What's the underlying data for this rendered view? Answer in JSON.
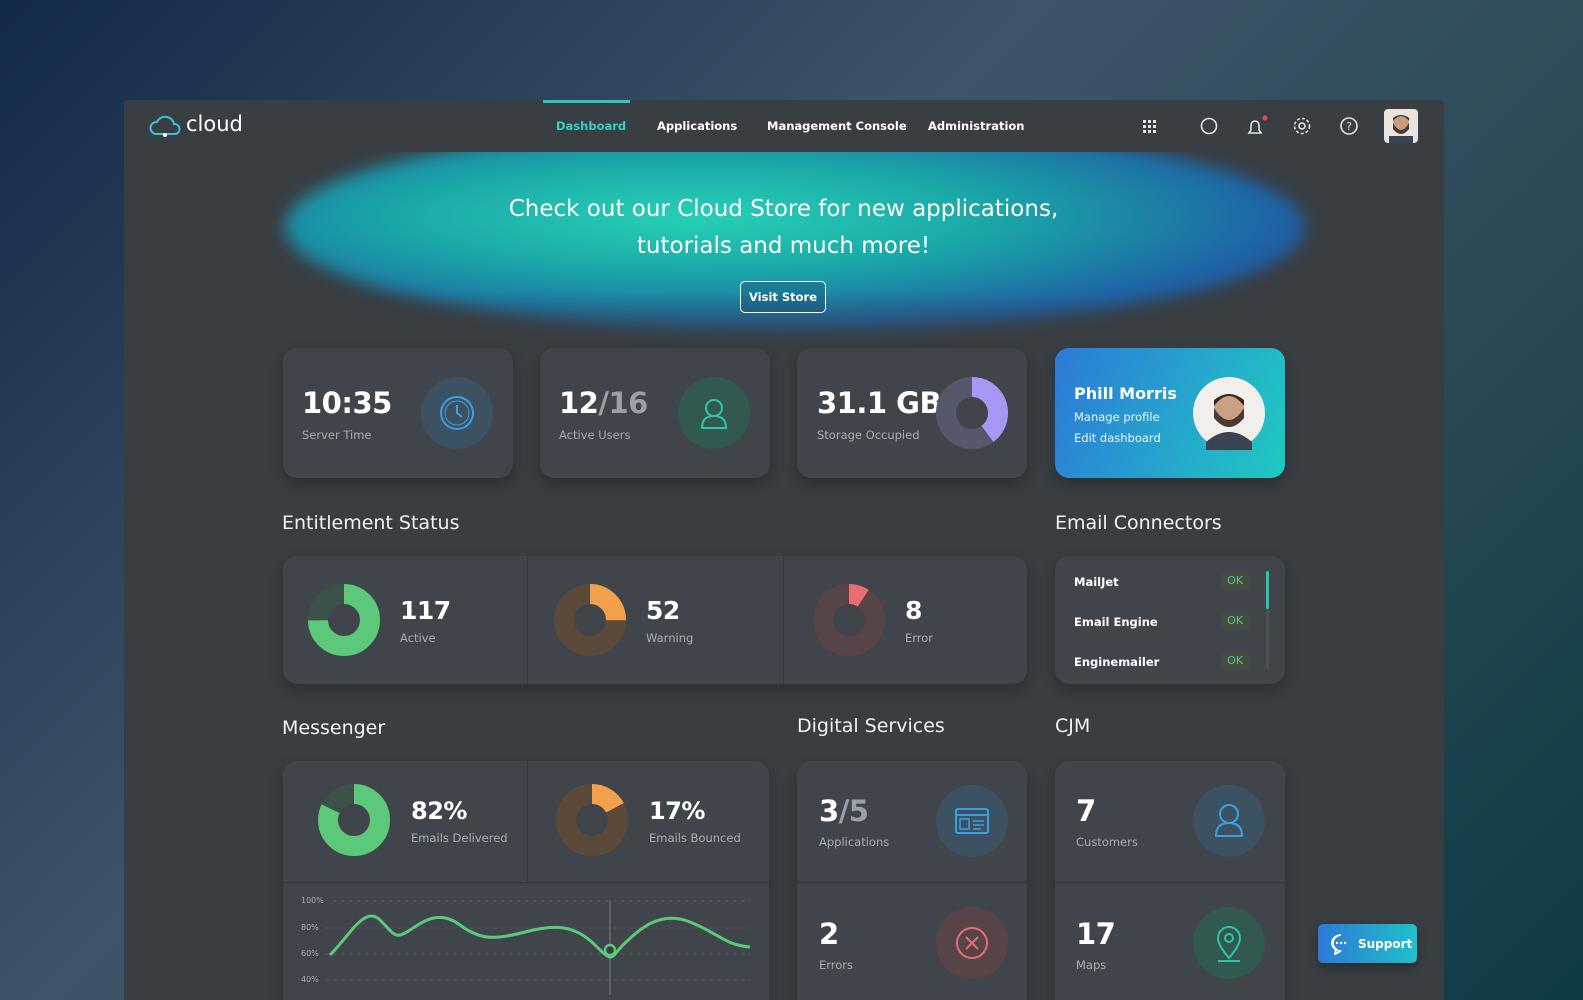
{
  "nav": {
    "logo": "cloud",
    "items": [
      "Dashboard",
      "Applications",
      "Management Console",
      "Administration"
    ]
  },
  "banner": {
    "line1": "Check out our Cloud Store for new applications,",
    "line2": "tutorials and much more!",
    "button": "Visit Store"
  },
  "stats": [
    {
      "value": "10:35",
      "label": "Server Time"
    },
    {
      "value": "12",
      "suffix": "/16",
      "label": "Active Users"
    },
    {
      "value": "31.1 GB",
      "label": "Storage Occupied"
    }
  ],
  "profile": {
    "name": "Phill Morris",
    "links": [
      "Manage profile",
      "Edit dashboard"
    ]
  },
  "entitlement": {
    "title": "Entitlement Status",
    "items": [
      {
        "value": "117",
        "label": "Active"
      },
      {
        "value": "52",
        "label": "Warning"
      },
      {
        "value": "8",
        "label": "Error"
      }
    ]
  },
  "email_connectors": {
    "title": "Email Connectors",
    "items": [
      {
        "name": "MailJet",
        "status": "OK"
      },
      {
        "name": "Email Engine",
        "status": "OK"
      },
      {
        "name": "Enginemailer",
        "status": "OK"
      }
    ]
  },
  "messenger": {
    "title": "Messenger",
    "items": [
      {
        "value": "82%",
        "label": "Emails Delivered"
      },
      {
        "value": "17%",
        "label": "Emails Bounced"
      }
    ],
    "chart_ticks": [
      "100%",
      "80%",
      "60%",
      "40%"
    ]
  },
  "digital_services": {
    "title": "Digital Services",
    "items": [
      {
        "value": "3",
        "suffix": "/5",
        "label": "Applications"
      },
      {
        "value": "2",
        "label": "Errors"
      }
    ]
  },
  "cjm": {
    "title": "CJM",
    "items": [
      {
        "value": "7",
        "label": "Customers"
      },
      {
        "value": "17",
        "label": "Maps"
      }
    ]
  },
  "support": "Support"
}
